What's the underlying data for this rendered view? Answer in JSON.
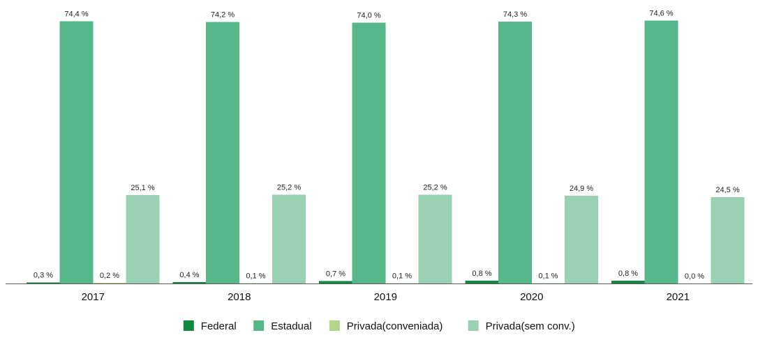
{
  "chart_data": {
    "type": "bar",
    "title": "",
    "xlabel": "",
    "ylabel": "",
    "categories": [
      "2017",
      "2018",
      "2019",
      "2020",
      "2021"
    ],
    "ylim": [
      0,
      75
    ],
    "grid": false,
    "legend_position": "bottom-center",
    "series": [
      {
        "name": "Federal",
        "color": "#11893f",
        "values": [
          0.3,
          0.4,
          0.7,
          0.8,
          0.8
        ],
        "labels": [
          "0,3 %",
          "0,4 %",
          "0,7 %",
          "0,8 %",
          "0,8 %"
        ]
      },
      {
        "name": "Estadual",
        "color": "#55b78a",
        "values": [
          74.4,
          74.2,
          74.0,
          74.3,
          74.6
        ],
        "labels": [
          "74,4 %",
          "74,2 %",
          "74,0 %",
          "74,3 %",
          "74,6 %"
        ]
      },
      {
        "name": "Privada(conveniada)",
        "color": "#b3d68a",
        "values": [
          0.2,
          0.1,
          0.1,
          0.1,
          0.0
        ],
        "labels": [
          "0,2 %",
          "0,1 %",
          "0,1 %",
          "0,1 %",
          "0,0 %"
        ]
      },
      {
        "name": "Privada(sem conv.)",
        "color": "#9ad0b4",
        "values": [
          25.1,
          25.2,
          25.2,
          24.9,
          24.5
        ],
        "labels": [
          "25,1 %",
          "25,2 %",
          "25,2 %",
          "24,9 %",
          "24,5 %"
        ]
      }
    ]
  }
}
